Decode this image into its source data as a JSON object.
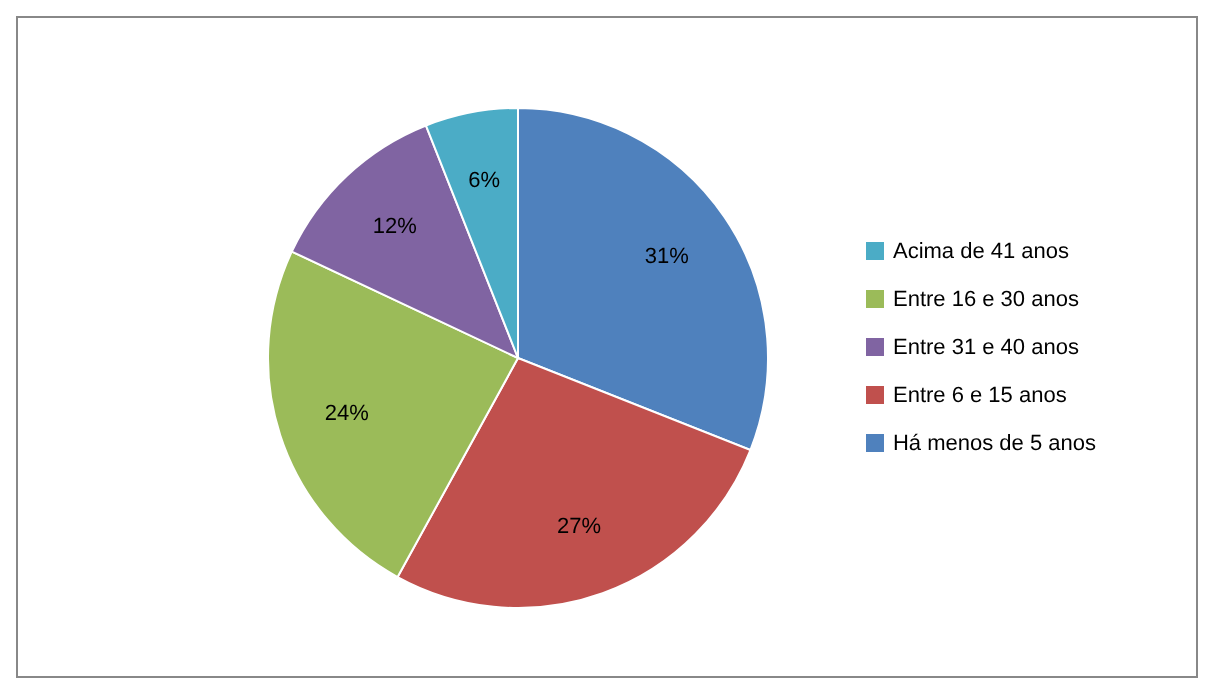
{
  "chart_data": {
    "type": "pie",
    "categories": [
      "Há menos de 5 anos",
      "Entre 6 e 15 anos",
      "Entre 16 e 30 anos",
      "Entre 31 e 40 anos",
      "Acima de 41 anos"
    ],
    "values": [
      31,
      27,
      24,
      12,
      6
    ],
    "colors": [
      "#4f81bd",
      "#c0504d",
      "#9bbb59",
      "#8064a2",
      "#4bacc6"
    ],
    "value_labels": [
      "31%",
      "27%",
      "24%",
      "12%",
      "6%"
    ],
    "legend": "right"
  }
}
